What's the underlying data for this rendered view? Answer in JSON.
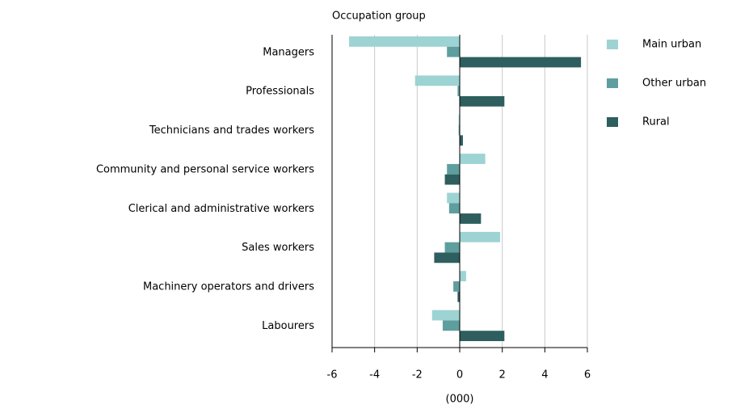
{
  "chart_data": {
    "type": "hbar",
    "title": "Occupation group",
    "xlabel": "(000)",
    "categories": [
      "Managers",
      "Professionals",
      "Technicians and trades workers",
      "Community and personal service workers",
      "Clerical and administrative workers",
      "Sales workers",
      "Machinery operators and drivers",
      "Labourers"
    ],
    "series": [
      {
        "name": "Main urban",
        "color": "#9dd3d3",
        "values": [
          -5.2,
          -2.1,
          -0.05,
          1.2,
          -0.6,
          1.9,
          0.3,
          -1.3
        ]
      },
      {
        "name": "Other urban",
        "color": "#5f9e9e",
        "values": [
          -0.6,
          -0.1,
          -0.05,
          -0.6,
          -0.5,
          -0.7,
          -0.3,
          -0.8
        ]
      },
      {
        "name": "Rural",
        "color": "#2e5e5e",
        "values": [
          5.7,
          2.1,
          0.15,
          -0.7,
          1.0,
          -1.2,
          -0.1,
          2.1
        ]
      }
    ],
    "xlim": [
      -6,
      6
    ],
    "xticks": [
      -6,
      -4,
      -2,
      0,
      2,
      4,
      6
    ],
    "grid": true,
    "legend": "right"
  }
}
